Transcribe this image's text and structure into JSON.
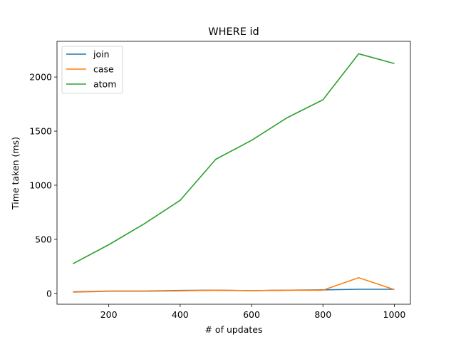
{
  "chart_data": {
    "type": "line",
    "title": "WHERE id",
    "xlabel": "# of updates",
    "ylabel": "Time taken (ms)",
    "x": [
      100,
      200,
      300,
      400,
      500,
      600,
      700,
      800,
      900,
      1000
    ],
    "xlim": [
      55,
      1045
    ],
    "ylim": [
      -100,
      2330
    ],
    "xticks": [
      200,
      400,
      600,
      800,
      1000
    ],
    "yticks": [
      0,
      500,
      1000,
      1500,
      2000
    ],
    "grid": false,
    "legend_position": "top-left",
    "series": [
      {
        "name": "join",
        "color": "#1f77b4",
        "values": [
          15,
          22,
          22,
          27,
          30,
          25,
          30,
          33,
          38,
          38
        ]
      },
      {
        "name": "case",
        "color": "#ff7f0e",
        "values": [
          12,
          20,
          20,
          24,
          30,
          25,
          30,
          30,
          145,
          35
        ]
      },
      {
        "name": "atom",
        "color": "#2ca02c",
        "values": [
          275,
          450,
          645,
          860,
          1240,
          1415,
          1625,
          1790,
          2215,
          2125
        ]
      }
    ]
  }
}
